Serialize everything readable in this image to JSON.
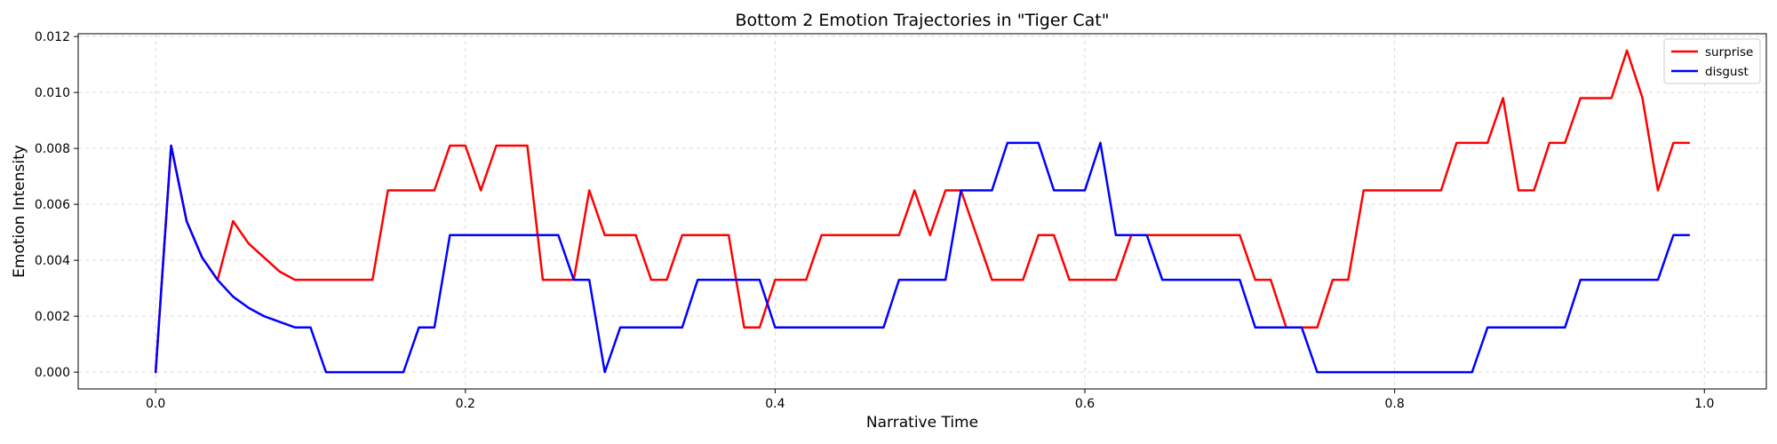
{
  "chart_data": {
    "type": "line",
    "title": "Bottom 2 Emotion Trajectories in \"Tiger Cat\"",
    "xlabel": "Narrative Time",
    "ylabel": "Emotion Intensity",
    "xlim": [
      -0.05,
      1.04
    ],
    "ylim": [
      -0.0006,
      0.0121
    ],
    "xticks": [
      0.0,
      0.2,
      0.4,
      0.6,
      0.8,
      1.0
    ],
    "xtick_labels": [
      "0.0",
      "0.2",
      "0.4",
      "0.6",
      "0.8",
      "1.0"
    ],
    "yticks": [
      0.0,
      0.002,
      0.004,
      0.006,
      0.008,
      0.01,
      0.012
    ],
    "ytick_labels": [
      "0.000",
      "0.002",
      "0.004",
      "0.006",
      "0.008",
      "0.010",
      "0.012"
    ],
    "grid": true,
    "legend_position": "top-right",
    "x": [
      0.0,
      0.01,
      0.02,
      0.03,
      0.04,
      0.05,
      0.06,
      0.07,
      0.08,
      0.09,
      0.1,
      0.11,
      0.12,
      0.13,
      0.14,
      0.15,
      0.16,
      0.17,
      0.18,
      0.19,
      0.2,
      0.21,
      0.22,
      0.23,
      0.24,
      0.25,
      0.26,
      0.27,
      0.28,
      0.29,
      0.3,
      0.31,
      0.32,
      0.33,
      0.34,
      0.35,
      0.36,
      0.37,
      0.38,
      0.39,
      0.4,
      0.41,
      0.42,
      0.43,
      0.44,
      0.45,
      0.46,
      0.47,
      0.48,
      0.49,
      0.5,
      0.51,
      0.52,
      0.53,
      0.54,
      0.55,
      0.56,
      0.57,
      0.58,
      0.59,
      0.6,
      0.61,
      0.62,
      0.63,
      0.64,
      0.65,
      0.66,
      0.67,
      0.68,
      0.69,
      0.7,
      0.71,
      0.72,
      0.73,
      0.74,
      0.75,
      0.76,
      0.77,
      0.78,
      0.79,
      0.8,
      0.81,
      0.82,
      0.83,
      0.84,
      0.85,
      0.86,
      0.87,
      0.88,
      0.89,
      0.9,
      0.91,
      0.92,
      0.93,
      0.94,
      0.95,
      0.96,
      0.97,
      0.98,
      0.99
    ],
    "series": [
      {
        "name": "surprise",
        "color": "#ff0000",
        "values": [
          0.0,
          0.0081,
          0.0054,
          0.0041,
          0.0033,
          0.0054,
          0.0046,
          0.0041,
          0.0036,
          0.0033,
          0.0033,
          0.0033,
          0.0033,
          0.0033,
          0.0033,
          0.0065,
          0.0065,
          0.0065,
          0.0065,
          0.0081,
          0.0081,
          0.0065,
          0.0081,
          0.0081,
          0.0081,
          0.0033,
          0.0033,
          0.0033,
          0.0065,
          0.0049,
          0.0049,
          0.0049,
          0.0033,
          0.0033,
          0.0049,
          0.0049,
          0.0049,
          0.0049,
          0.0016,
          0.0016,
          0.0033,
          0.0033,
          0.0033,
          0.0049,
          0.0049,
          0.0049,
          0.0049,
          0.0049,
          0.0049,
          0.0065,
          0.0049,
          0.0065,
          0.0065,
          0.0049,
          0.0033,
          0.0033,
          0.0033,
          0.0049,
          0.0049,
          0.0033,
          0.0033,
          0.0033,
          0.0033,
          0.0049,
          0.0049,
          0.0049,
          0.0049,
          0.0049,
          0.0049,
          0.0049,
          0.0049,
          0.0033,
          0.0033,
          0.0016,
          0.0016,
          0.0016,
          0.0033,
          0.0033,
          0.0065,
          0.0065,
          0.0065,
          0.0065,
          0.0065,
          0.0065,
          0.0082,
          0.0082,
          0.0082,
          0.0098,
          0.0065,
          0.0065,
          0.0082,
          0.0082,
          0.0098,
          0.0098,
          0.0098,
          0.0115,
          0.0098,
          0.0065,
          0.0082,
          0.0082
        ]
      },
      {
        "name": "disgust",
        "color": "#0000ff",
        "values": [
          0.0,
          0.0081,
          0.0054,
          0.0041,
          0.0033,
          0.0027,
          0.0023,
          0.002,
          0.0018,
          0.0016,
          0.0016,
          0.0,
          0.0,
          0.0,
          0.0,
          0.0,
          0.0,
          0.0016,
          0.0016,
          0.0049,
          0.0049,
          0.0049,
          0.0049,
          0.0049,
          0.0049,
          0.0049,
          0.0049,
          0.0033,
          0.0033,
          0.0,
          0.0016,
          0.0016,
          0.0016,
          0.0016,
          0.0016,
          0.0033,
          0.0033,
          0.0033,
          0.0033,
          0.0033,
          0.0016,
          0.0016,
          0.0016,
          0.0016,
          0.0016,
          0.0016,
          0.0016,
          0.0016,
          0.0033,
          0.0033,
          0.0033,
          0.0033,
          0.0065,
          0.0065,
          0.0065,
          0.0082,
          0.0082,
          0.0082,
          0.0065,
          0.0065,
          0.0065,
          0.0082,
          0.0049,
          0.0049,
          0.0049,
          0.0033,
          0.0033,
          0.0033,
          0.0033,
          0.0033,
          0.0033,
          0.0016,
          0.0016,
          0.0016,
          0.0016,
          0.0,
          0.0,
          0.0,
          0.0,
          0.0,
          0.0,
          0.0,
          0.0,
          0.0,
          0.0,
          0.0,
          0.0016,
          0.0016,
          0.0016,
          0.0016,
          0.0016,
          0.0016,
          0.0033,
          0.0033,
          0.0033,
          0.0033,
          0.0033,
          0.0033,
          0.0049,
          0.0049
        ]
      }
    ]
  }
}
